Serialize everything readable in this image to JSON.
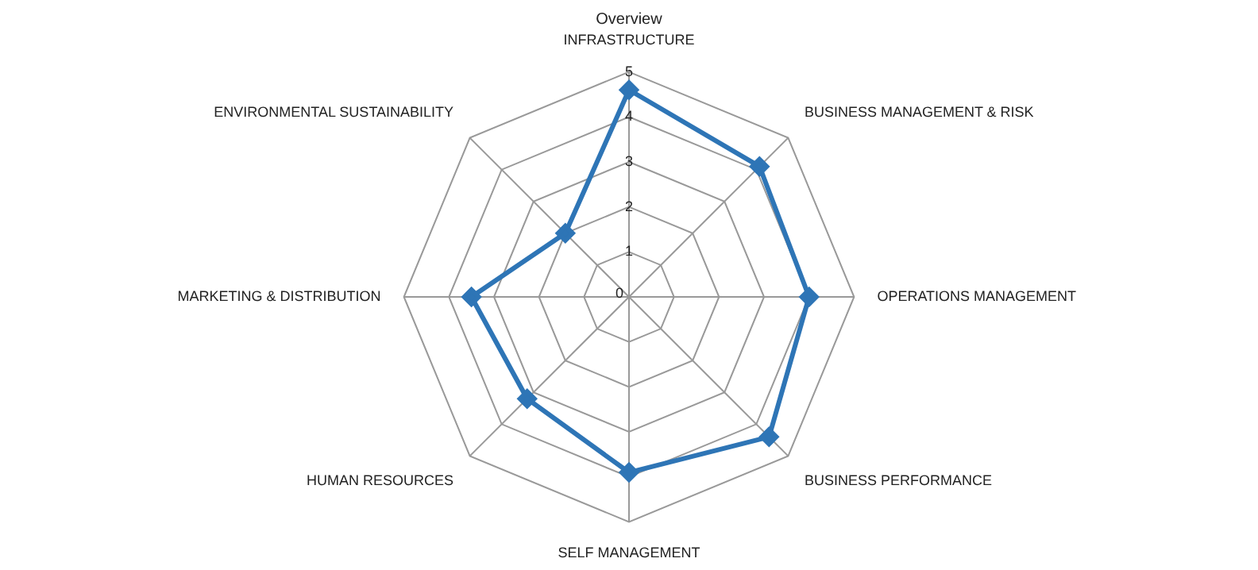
{
  "chart_data": {
    "type": "radar",
    "title": "Overview",
    "categories": [
      "INFRASTRUCTURE",
      "BUSINESS MANAGEMENT & RISK",
      "OPERATIONS MANAGEMENT",
      "BUSINESS PERFORMANCE",
      "SELF MANAGEMENT",
      "HUMAN RESOURCES",
      "MARKETING & DISTRIBUTION",
      "ENVIRONMENTAL SUSTAINABILITY"
    ],
    "series": [
      {
        "color": "#2e75b6",
        "values": [
          4.6,
          4.1,
          4.0,
          4.4,
          3.9,
          3.2,
          3.5,
          2.0
        ]
      }
    ],
    "ylim": [
      0,
      5
    ],
    "yticks": [
      0,
      1,
      2,
      3,
      4,
      5
    ],
    "grid": true,
    "legend": false,
    "marker": "diamond",
    "line_style": "solid"
  }
}
